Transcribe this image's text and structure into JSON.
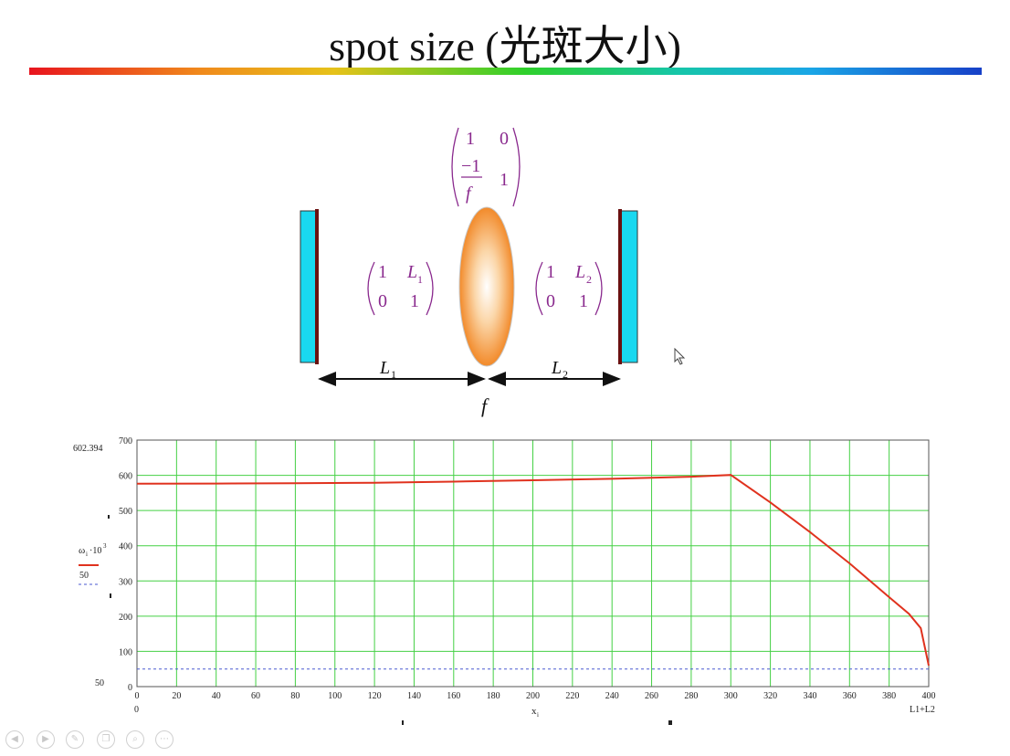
{
  "slide": {
    "title": "spot size (光斑大小)"
  },
  "diagram": {
    "lens_matrix": {
      "r1c1": "1",
      "r1c2": "0",
      "r2c1_num": "−1",
      "r2c1_den": "f",
      "r2c2": "1"
    },
    "matrix_left": {
      "r1c1": "1",
      "r1c2": "L",
      "r1c2_sub": "1",
      "r2c1": "0",
      "r2c2": "1"
    },
    "matrix_right": {
      "r1c1": "1",
      "r1c2": "L",
      "r1c2_sub": "2",
      "r2c1": "0",
      "r2c2": "1"
    },
    "dim_left": {
      "label": "L",
      "sub": "1"
    },
    "dim_right": {
      "label": "L",
      "sub": "2"
    },
    "focal_label": "f",
    "colors": {
      "mirror_face": "#19d8f0",
      "mirror_back": "#6a1010",
      "matrix_text": "#8a2a8e",
      "lens": "#f39a3c"
    }
  },
  "chart_data": {
    "type": "line",
    "x_range": [
      0,
      400
    ],
    "y_range": [
      0,
      700
    ],
    "x_ticks": [
      0,
      20,
      40,
      60,
      80,
      100,
      120,
      140,
      160,
      180,
      200,
      220,
      240,
      260,
      280,
      300,
      320,
      340,
      360,
      380,
      400
    ],
    "y_ticks": [
      0,
      100,
      200,
      300,
      400,
      500,
      600,
      700
    ],
    "y_max_readout": "602.394",
    "y_min_readout": "50",
    "x_left_readout": "0",
    "x_right_readout": "L1+L2",
    "xlabel": "x",
    "xlabel_sub": "i",
    "legend": [
      {
        "label": "ω",
        "sub": "i",
        "suffix": "·10",
        "sup": "3",
        "style": "solid",
        "color": "#e0321e"
      },
      {
        "label": "50",
        "style": "dashed",
        "color": "#4a5ad0"
      }
    ],
    "series": [
      {
        "name": "ωi·10^3",
        "points": [
          [
            0,
            576
          ],
          [
            40,
            576.5
          ],
          [
            80,
            577.5
          ],
          [
            120,
            579
          ],
          [
            160,
            582
          ],
          [
            200,
            586
          ],
          [
            240,
            590
          ],
          [
            280,
            596
          ],
          [
            300,
            601
          ],
          [
            320,
            523
          ],
          [
            340,
            439
          ],
          [
            360,
            350
          ],
          [
            380,
            254
          ],
          [
            390,
            207
          ],
          [
            396,
            166
          ],
          [
            400,
            60
          ]
        ]
      },
      {
        "name": "50",
        "points": [
          [
            0,
            50
          ],
          [
            400,
            50
          ]
        ]
      }
    ],
    "grid": true,
    "grid_color": "#44d044"
  },
  "toolbar": {
    "icons": [
      "prev-icon",
      "next-icon",
      "pen-icon",
      "copy-icon",
      "zoom-icon",
      "more-icon"
    ]
  }
}
